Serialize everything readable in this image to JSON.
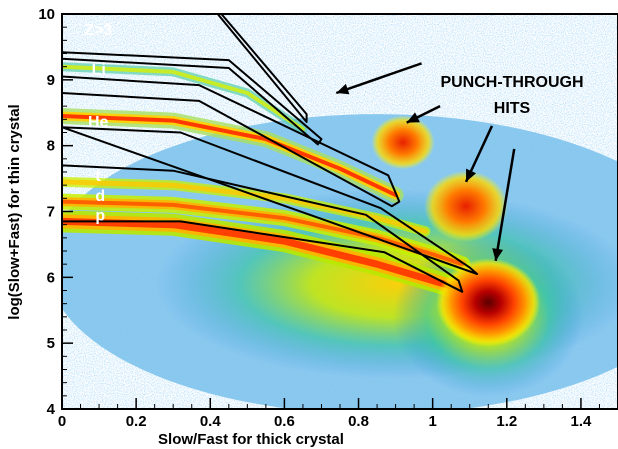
{
  "chart_data": {
    "type": "heatmap",
    "title": "",
    "xlabel": "Slow/Fast for thick crystal",
    "ylabel": "log(Slow+Fast) for thin crystal",
    "xlim": [
      0,
      1.5
    ],
    "ylim": [
      4,
      10
    ],
    "x_ticks": [
      "0",
      "0.2",
      "0.4",
      "0.6",
      "0.8",
      "1",
      "1.2",
      "1.4"
    ],
    "y_ticks": [
      "4",
      "5",
      "6",
      "7",
      "8",
      "9",
      "10"
    ],
    "x_tick_values": [
      0,
      0.2,
      0.4,
      0.6,
      0.8,
      1.0,
      1.2,
      1.4
    ],
    "y_tick_values": [
      4,
      5,
      6,
      7,
      8,
      9,
      10
    ],
    "grid": false,
    "band_labels": [
      {
        "text": "Z>3",
        "x": 0.06,
        "y": 9.68
      },
      {
        "text": "Li",
        "x": 0.08,
        "y": 9.08
      },
      {
        "text": "He",
        "x": 0.07,
        "y": 8.28
      },
      {
        "text": "t",
        "x": 0.09,
        "y": 7.46
      },
      {
        "text": "d",
        "x": 0.09,
        "y": 7.16
      },
      {
        "text": "p",
        "x": 0.09,
        "y": 6.86
      }
    ],
    "annotation": {
      "lines": [
        "PUNCH-THROUGH",
        "HITS"
      ],
      "arrows": [
        {
          "from": [
            0.97,
            9.25
          ],
          "to": [
            0.74,
            8.8
          ]
        },
        {
          "from": [
            1.02,
            8.6
          ],
          "to": [
            0.93,
            8.35
          ]
        },
        {
          "from": [
            1.16,
            8.3
          ],
          "to": [
            1.09,
            7.45
          ]
        },
        {
          "from": [
            1.22,
            7.95
          ],
          "to": [
            1.17,
            6.25
          ]
        }
      ]
    },
    "cut_regions": [
      {
        "name": "Z>3",
        "points": [
          [
            0.43,
            10.0
          ],
          [
            0.66,
            8.48
          ],
          [
            0.66,
            8.36
          ],
          [
            0.42,
            10.0
          ]
        ]
      },
      {
        "name": "Li",
        "points": [
          [
            0.0,
            9.42
          ],
          [
            0.45,
            9.3
          ],
          [
            0.7,
            8.1
          ],
          [
            0.69,
            8.02
          ],
          [
            0.45,
            9.18
          ],
          [
            0.0,
            9.32
          ]
        ]
      },
      {
        "name": "He",
        "points": [
          [
            0.0,
            9.05
          ],
          [
            0.37,
            8.92
          ],
          [
            0.88,
            7.55
          ],
          [
            0.91,
            7.15
          ],
          [
            0.89,
            7.08
          ],
          [
            0.37,
            8.68
          ],
          [
            0.0,
            8.8
          ]
        ]
      },
      {
        "name": "t",
        "points": [
          [
            0.0,
            8.28
          ],
          [
            0.32,
            8.2
          ],
          [
            0.86,
            7.05
          ],
          [
            1.1,
            6.15
          ],
          [
            1.12,
            6.05
          ]
        ]
      },
      {
        "name": "d",
        "points": [
          [
            0.0,
            7.7
          ],
          [
            0.3,
            7.62
          ],
          [
            0.82,
            6.95
          ],
          [
            1.07,
            5.95
          ],
          [
            1.08,
            5.78
          ],
          [
            0.87,
            6.38
          ],
          [
            0.32,
            6.85
          ],
          [
            0.0,
            6.85
          ]
        ]
      }
    ],
    "density_features": [
      {
        "label": "p",
        "type": "band",
        "points": [
          [
            0.0,
            6.85
          ],
          [
            0.3,
            6.8
          ],
          [
            0.6,
            6.55
          ],
          [
            0.85,
            6.2
          ],
          [
            1.0,
            5.95
          ],
          [
            1.12,
            5.75
          ]
        ]
      },
      {
        "label": "d",
        "type": "band",
        "points": [
          [
            0.0,
            7.15
          ],
          [
            0.3,
            7.1
          ],
          [
            0.6,
            6.9
          ],
          [
            0.85,
            6.6
          ],
          [
            1.0,
            6.35
          ],
          [
            1.08,
            6.2
          ]
        ]
      },
      {
        "label": "t",
        "type": "band",
        "points": [
          [
            0.0,
            7.45
          ],
          [
            0.3,
            7.4
          ],
          [
            0.6,
            7.2
          ],
          [
            0.85,
            6.9
          ],
          [
            0.98,
            6.7
          ]
        ]
      },
      {
        "label": "He",
        "type": "band",
        "points": [
          [
            0.0,
            8.45
          ],
          [
            0.3,
            8.38
          ],
          [
            0.55,
            8.1
          ],
          [
            0.75,
            7.65
          ],
          [
            0.9,
            7.25
          ]
        ]
      },
      {
        "label": "Li",
        "type": "band",
        "points": [
          [
            0.0,
            9.2
          ],
          [
            0.3,
            9.12
          ],
          [
            0.5,
            8.8
          ],
          [
            0.65,
            8.25
          ]
        ]
      },
      {
        "label": "",
        "type": "blob",
        "x": 1.15,
        "y": 5.62,
        "intensity": 1.0
      },
      {
        "label": "",
        "type": "blob",
        "x": 1.09,
        "y": 7.08,
        "intensity": 0.7
      },
      {
        "label": "",
        "type": "blob",
        "x": 0.92,
        "y": 8.05,
        "intensity": 0.4
      }
    ]
  }
}
